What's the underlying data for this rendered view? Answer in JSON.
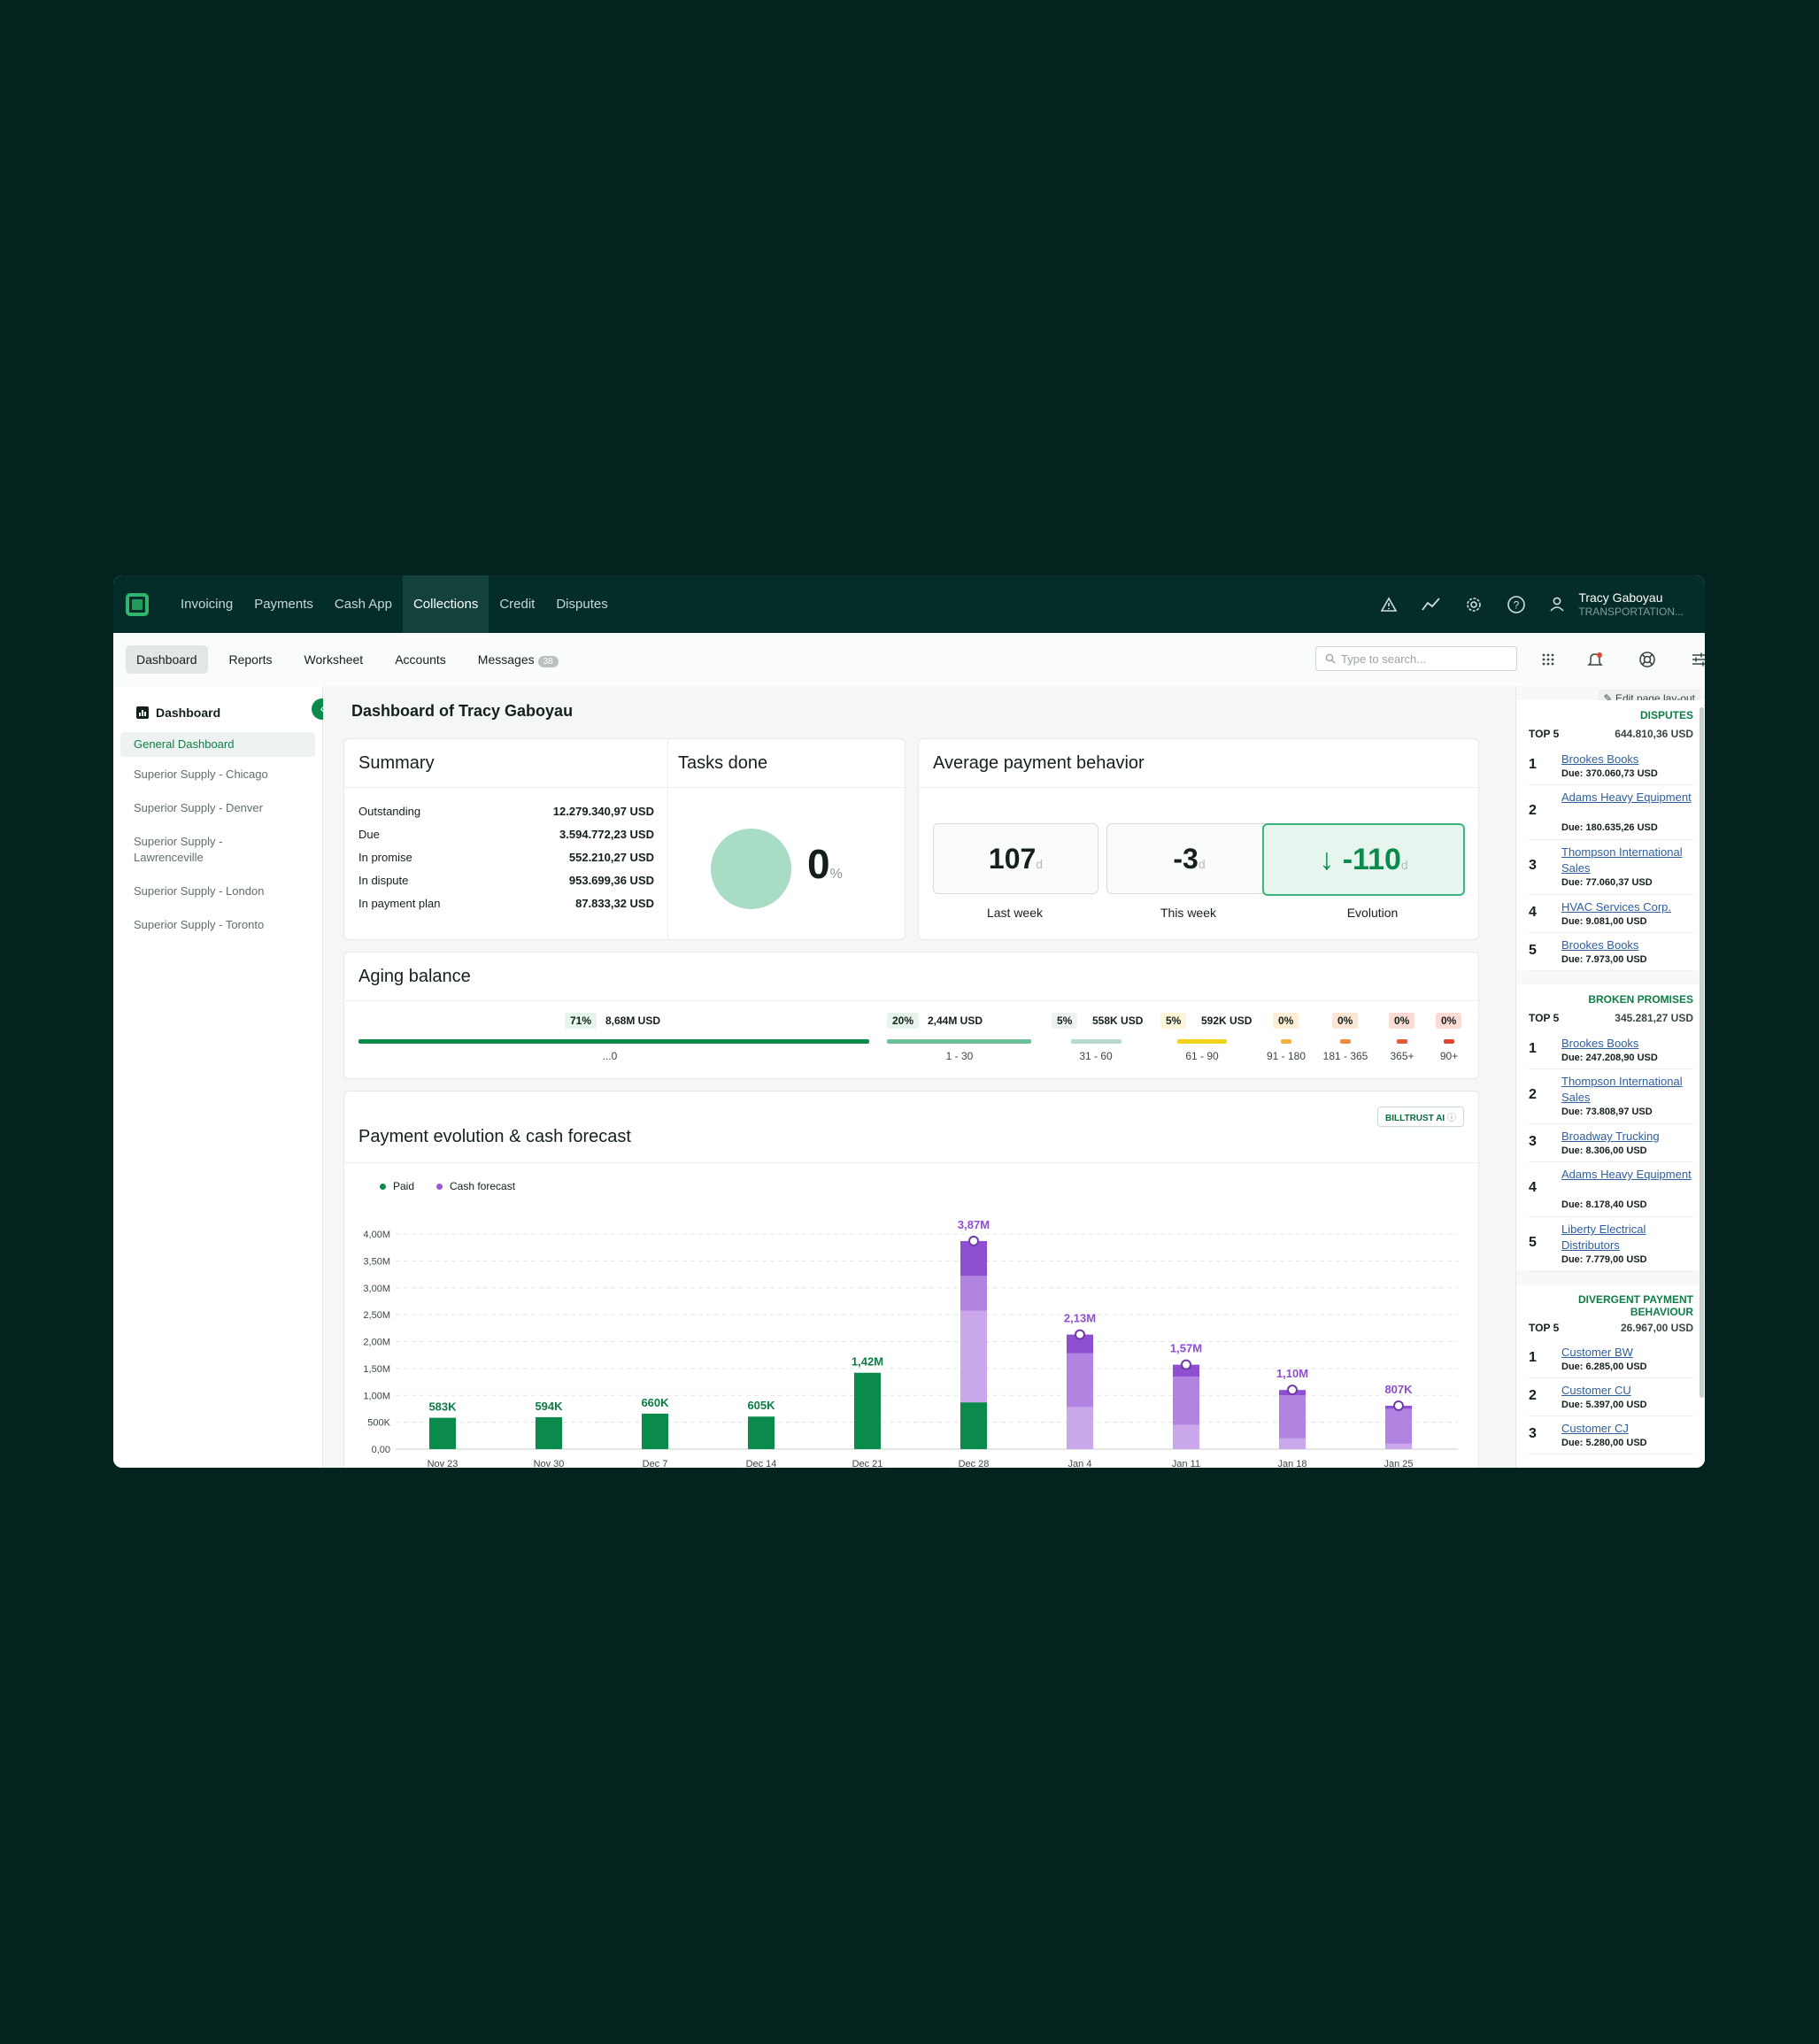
{
  "topnav": {
    "items": [
      "Invoicing",
      "Payments",
      "Cash App",
      "Collections",
      "Credit",
      "Disputes"
    ],
    "active": "Collections",
    "user_name": "Tracy Gaboyau",
    "user_org": "TRANSPORTATION..."
  },
  "subnav": {
    "items": [
      "Dashboard",
      "Reports",
      "Worksheet",
      "Accounts",
      "Messages"
    ],
    "messages_count": "38",
    "search_placeholder": "Type to search..."
  },
  "sidebar": {
    "title": "Dashboard",
    "items": [
      "General Dashboard",
      "Superior Supply - Chicago",
      "Superior Supply - Denver",
      "Superior Supply - Lawrenceville",
      "Superior Supply - London",
      "Superior Supply - Toronto"
    ]
  },
  "page_title": "Dashboard of Tracy Gaboyau",
  "summary": {
    "title": "Summary",
    "rows": [
      {
        "label": "Outstanding",
        "value": "12.279.340,97 USD"
      },
      {
        "label": "Due",
        "value": "3.594.772,23 USD"
      },
      {
        "label": "In promise",
        "value": "552.210,27 USD"
      },
      {
        "label": "In dispute",
        "value": "953.699,36 USD"
      },
      {
        "label": "In payment plan",
        "value": "87.833,32 USD"
      }
    ]
  },
  "tasks": {
    "title": "Tasks done",
    "value": "0",
    "unit": "%"
  },
  "payment_behavior": {
    "title": "Average payment behavior",
    "metrics": [
      {
        "value": "107",
        "unit": "d",
        "label": "Last week"
      },
      {
        "value": "-3",
        "unit": "d",
        "label": "This week"
      },
      {
        "value": "-110",
        "unit": "d",
        "label": "Evolution"
      }
    ]
  },
  "aging": {
    "title": "Aging balance",
    "buckets": [
      {
        "pct": "71%",
        "amount": "8,68M USD",
        "label": "...0",
        "color": "#0a8a4b",
        "badge_bg": "#e6f4ec",
        "share": 0.71
      },
      {
        "pct": "20%",
        "amount": "2,44M USD",
        "label": "1 - 30",
        "color": "#6dbf99",
        "badge_bg": "#e6f4ec",
        "share": 0.2
      },
      {
        "pct": "5%",
        "amount": "558K USD",
        "label": "31 - 60",
        "color": "#b8d9ca",
        "badge_bg": "#eef2f1",
        "share": 0.05
      },
      {
        "pct": "5%",
        "amount": "592K USD",
        "label": "61 - 90",
        "color": "#f2d21a",
        "badge_bg": "#fdf6d8",
        "share": 0.05
      },
      {
        "pct": "0%",
        "amount": "",
        "label": "91 - 180",
        "color": "#f4b23a",
        "badge_bg": "#fdefd6",
        "share": 0
      },
      {
        "pct": "0%",
        "amount": "",
        "label": "181 - 365",
        "color": "#ef8a3a",
        "badge_bg": "#fde5d4",
        "share": 0
      },
      {
        "pct": "0%",
        "amount": "",
        "label": "365+",
        "color": "#e35a3a",
        "badge_bg": "#fbdcd4",
        "share": 0
      },
      {
        "pct": "0%",
        "amount": "",
        "label": "90+",
        "color": "#e0452f",
        "badge_bg": "#fbdcd4",
        "share": 0
      }
    ]
  },
  "cash_forecast": {
    "title": "Payment evolution & cash forecast",
    "ai_badge": "BILLTRUST AI",
    "legend": [
      {
        "name": "Paid",
        "color": "#0a8a4b"
      },
      {
        "name": "Cash forecast",
        "color": "#9b59d6"
      }
    ]
  },
  "chart_data": {
    "type": "bar",
    "title": "Payment evolution & cash forecast",
    "categories": [
      "Nov 23",
      "Nov 30",
      "Dec 7",
      "Dec 14",
      "Dec 21",
      "Dec 28",
      "Jan 4",
      "Jan 11",
      "Jan 18",
      "Jan 25"
    ],
    "ylim": [
      0,
      4000000
    ],
    "yticks": [
      "0,00",
      "500K",
      "1,00M",
      "1,50M",
      "2,00M",
      "2,50M",
      "3,00M",
      "3,50M",
      "4,00M"
    ],
    "data_labels": [
      "583K",
      "594K",
      "660K",
      "605K",
      "1,42M",
      "3,87M",
      "2,13M",
      "1,57M",
      "1,10M",
      "807K"
    ],
    "series": [
      {
        "name": "Paid",
        "color": "#0a8a4b",
        "values": [
          583000,
          594000,
          660000,
          605000,
          1420000,
          870000,
          0,
          0,
          0,
          0
        ]
      },
      {
        "name": "Cash forecast",
        "color": "#caa6ea",
        "values": [
          0,
          0,
          0,
          0,
          0,
          1700000,
          780000,
          450000,
          200000,
          100000
        ]
      },
      {
        "name": "Cash forecast",
        "color": "#b184e2",
        "values": [
          0,
          0,
          0,
          0,
          0,
          650000,
          1000000,
          900000,
          800000,
          650000
        ]
      },
      {
        "name": "Cash forecast",
        "color": "#8f4fd1",
        "values": [
          0,
          0,
          0,
          0,
          0,
          650000,
          350000,
          220000,
          100000,
          57000
        ]
      }
    ]
  },
  "right_panel": {
    "edit_layout": "Edit page lay-out",
    "sections": [
      {
        "title": "DISPUTES",
        "top": "TOP 5",
        "total": "644.810,36 USD",
        "items": [
          {
            "rank": "1",
            "name": "Brookes Books",
            "due": "Due: 370.060,73 USD"
          },
          {
            "rank": "2",
            "name": "Adams Heavy Equipment",
            "due": "Due: 180.635,26 USD"
          },
          {
            "rank": "3",
            "name": "Thompson International Sales",
            "due": "Due: 77.060,37 USD"
          },
          {
            "rank": "4",
            "name": "HVAC Services Corp.",
            "due": "Due: 9.081,00 USD"
          },
          {
            "rank": "5",
            "name": "Brookes Books",
            "due": "Due: 7.973,00 USD"
          }
        ]
      },
      {
        "title": "BROKEN PROMISES",
        "top": "TOP 5",
        "total": "345.281,27 USD",
        "items": [
          {
            "rank": "1",
            "name": "Brookes Books",
            "due": "Due: 247.208,90 USD"
          },
          {
            "rank": "2",
            "name": "Thompson International Sales",
            "due": "Due: 73.808,97 USD"
          },
          {
            "rank": "3",
            "name": "Broadway Trucking",
            "due": "Due: 8.306,00 USD"
          },
          {
            "rank": "4",
            "name": "Adams Heavy Equipment",
            "due": "Due: 8.178,40 USD"
          },
          {
            "rank": "5",
            "name": "Liberty Electrical Distributors",
            "due": "Due: 7.779,00 USD"
          }
        ]
      },
      {
        "title": "DIVERGENT PAYMENT BEHAVIOUR",
        "top": "TOP 5",
        "total": "26.967,00 USD",
        "items": [
          {
            "rank": "1",
            "name": "Customer BW",
            "due": "Due: 6.285,00 USD"
          },
          {
            "rank": "2",
            "name": "Customer CU",
            "due": "Due: 5.397,00 USD"
          },
          {
            "rank": "3",
            "name": "Customer CJ",
            "due": "Due: 5.280,00 USD"
          }
        ]
      }
    ]
  }
}
